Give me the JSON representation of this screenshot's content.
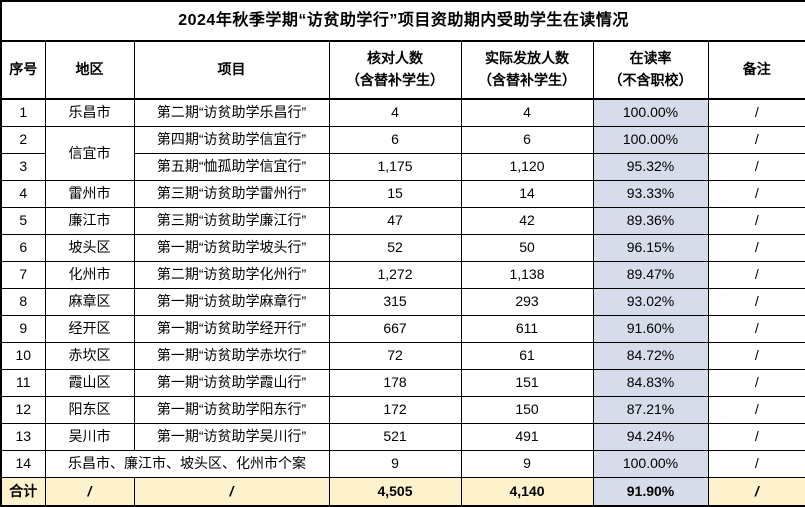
{
  "title": "2024年秋季学期“访贫助学行”项目资助期内受助学生在读情况",
  "columns": [
    {
      "label": "序号"
    },
    {
      "label": "地区"
    },
    {
      "label": "项目"
    },
    {
      "label": "核对人数\n（含替补学生）"
    },
    {
      "label": "实际发放人数\n（含替补学生）"
    },
    {
      "label": "在读率\n（不含职校）",
      "highlight": true
    },
    {
      "label": "备注"
    }
  ],
  "rows": [
    {
      "no": "1",
      "region": "乐昌市",
      "rowspan": 1,
      "project": "第二期“访贫助学乐昌行”",
      "checked": "4",
      "issued": "4",
      "rate": "100.00%",
      "remark": "/"
    },
    {
      "no": "2",
      "region": "信宜市",
      "rowspan": 2,
      "project": "第四期“访贫助学信宜行”",
      "checked": "6",
      "issued": "6",
      "rate": "100.00%",
      "remark": "/"
    },
    {
      "no": "3",
      "project": "第五期“恤孤助学信宜行”",
      "checked": "1,175",
      "issued": "1,120",
      "rate": "95.32%",
      "remark": "/"
    },
    {
      "no": "4",
      "region": "雷州市",
      "rowspan": 1,
      "project": "第三期“访贫助学雷州行”",
      "checked": "15",
      "issued": "14",
      "rate": "93.33%",
      "remark": "/"
    },
    {
      "no": "5",
      "region": "廉江市",
      "rowspan": 1,
      "project": "第三期“访贫助学廉江行”",
      "checked": "47",
      "issued": "42",
      "rate": "89.36%",
      "remark": "/"
    },
    {
      "no": "6",
      "region": "坡头区",
      "rowspan": 1,
      "project": "第一期“访贫助学坡头行”",
      "checked": "52",
      "issued": "50",
      "rate": "96.15%",
      "remark": "/"
    },
    {
      "no": "7",
      "region": "化州市",
      "rowspan": 1,
      "project": "第二期“访贫助学化州行”",
      "checked": "1,272",
      "issued": "1,138",
      "rate": "89.47%",
      "remark": "/"
    },
    {
      "no": "8",
      "region": "麻章区",
      "rowspan": 1,
      "project": "第一期“访贫助学麻章行”",
      "checked": "315",
      "issued": "293",
      "rate": "93.02%",
      "remark": "/"
    },
    {
      "no": "9",
      "region": "经开区",
      "rowspan": 1,
      "project": "第一期“访贫助学经开行”",
      "checked": "667",
      "issued": "611",
      "rate": "91.60%",
      "remark": "/"
    },
    {
      "no": "10",
      "region": "赤坎区",
      "rowspan": 1,
      "project": "第一期“访贫助学赤坎行”",
      "checked": "72",
      "issued": "61",
      "rate": "84.72%",
      "remark": "/"
    },
    {
      "no": "11",
      "region": "霞山区",
      "rowspan": 1,
      "project": "第一期“访贫助学霞山行”",
      "checked": "178",
      "issued": "151",
      "rate": "84.83%",
      "remark": "/"
    },
    {
      "no": "12",
      "region": "阳东区",
      "rowspan": 1,
      "project": "第一期“访贫助学阳东行”",
      "checked": "172",
      "issued": "150",
      "rate": "87.21%",
      "remark": "/"
    },
    {
      "no": "13",
      "region": "吴川市",
      "rowspan": 1,
      "project": "第一期“访贫助学吴川行”",
      "checked": "521",
      "issued": "491",
      "rate": "94.24%",
      "remark": "/"
    },
    {
      "no": "14",
      "merged": "乐昌市、廉江市、坡头区、化州市个案",
      "checked": "9",
      "issued": "9",
      "rate": "100.00%",
      "remark": "/"
    }
  ],
  "total": {
    "label": "合计",
    "region": "/",
    "project": "/",
    "checked": "4,505",
    "issued": "4,140",
    "rate": "91.90%",
    "remark": "/"
  },
  "colors": {
    "highlight_blue": "#d6dce9",
    "total_yellow": "#fdf2cc",
    "border": "#000000",
    "text": "#000000"
  }
}
